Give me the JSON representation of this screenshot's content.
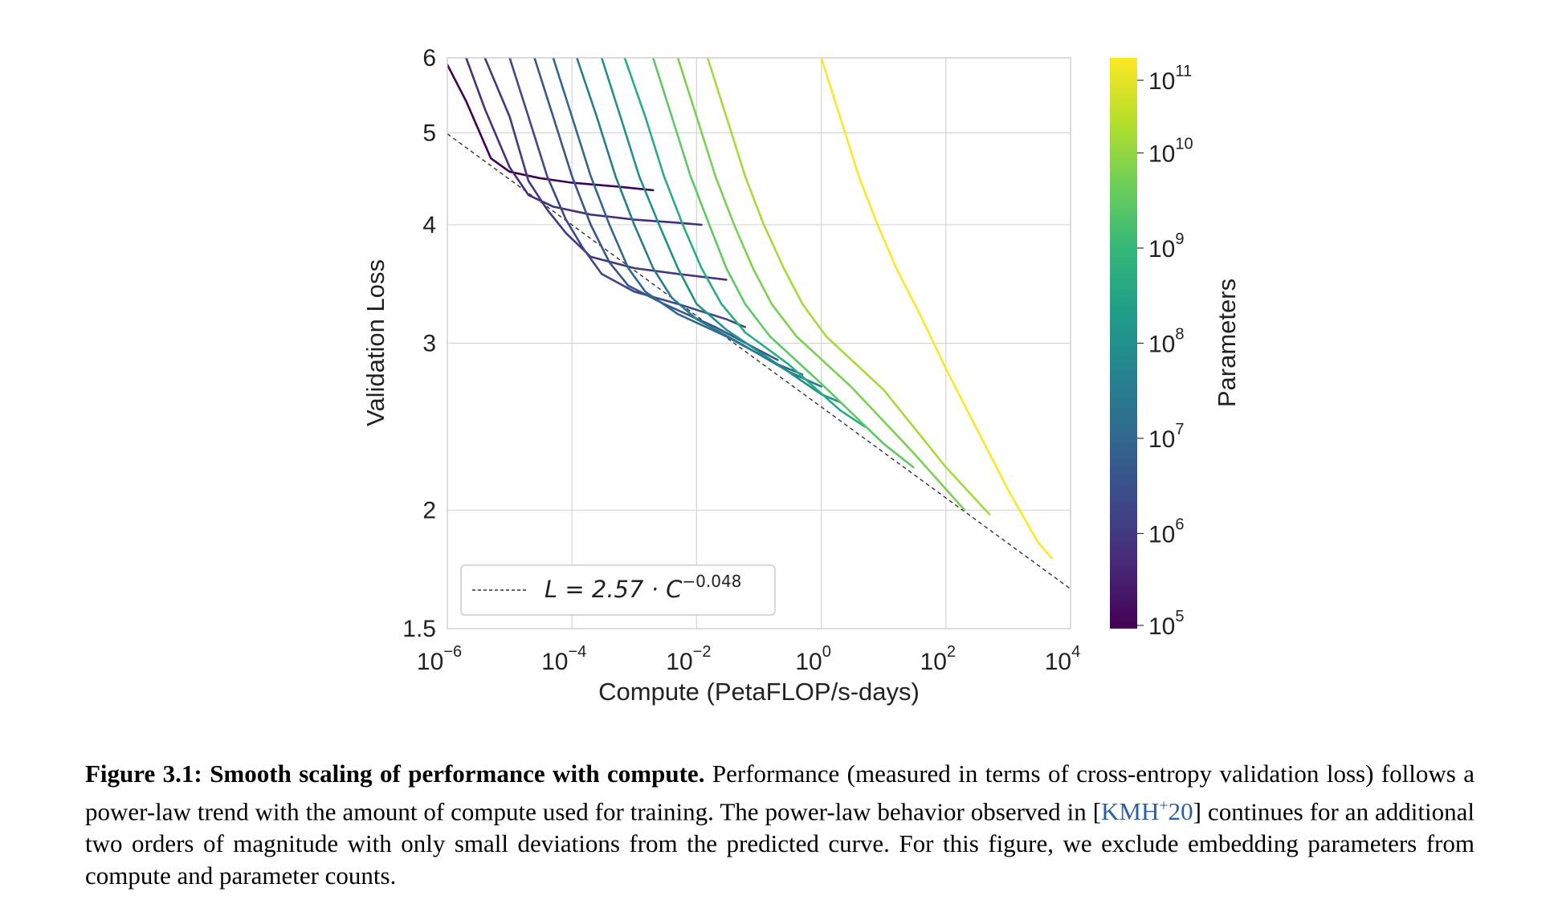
{
  "chart_data": {
    "type": "line",
    "xlabel": "Compute (PetaFLOP/s-days)",
    "ylabel": "Validation Loss",
    "x_scale": "log",
    "y_scale": "log",
    "xlim": [
      1e-06,
      10000.0
    ],
    "ylim": [
      1.5,
      6
    ],
    "x_ticks": [
      {
        "base": "10",
        "exp": "−6",
        "value": 1e-06
      },
      {
        "base": "10",
        "exp": "−4",
        "value": 0.0001
      },
      {
        "base": "10",
        "exp": "−2",
        "value": 0.01
      },
      {
        "base": "10",
        "exp": "0",
        "value": 1
      },
      {
        "base": "10",
        "exp": "2",
        "value": 100
      },
      {
        "base": "10",
        "exp": "4",
        "value": 10000
      }
    ],
    "y_ticks": [
      {
        "label": "1.5",
        "value": 1.5
      },
      {
        "label": "2",
        "value": 2
      },
      {
        "label": "3",
        "value": 3
      },
      {
        "label": "4",
        "value": 4
      },
      {
        "label": "5",
        "value": 5
      },
      {
        "label": "6",
        "value": 6
      }
    ],
    "grid": true,
    "legend": {
      "placement": "lower-left",
      "lhs": "L = 2.57 · C",
      "exponent": "−0.048"
    },
    "trend": {
      "a": 2.57,
      "b": -0.048,
      "style": "dashed",
      "color": "#333333"
    },
    "colorbar": {
      "label": "Parameters",
      "scale": "log",
      "range": [
        100000.0,
        100000000000.0
      ],
      "ticks": [
        {
          "base": "10",
          "exp": "5",
          "value": 100000.0
        },
        {
          "base": "10",
          "exp": "6",
          "value": 1000000.0
        },
        {
          "base": "10",
          "exp": "7",
          "value": 10000000.0
        },
        {
          "base": "10",
          "exp": "8",
          "value": 100000000.0
        },
        {
          "base": "10",
          "exp": "9",
          "value": 1000000000.0
        },
        {
          "base": "10",
          "exp": "10",
          "value": 10000000000.0
        },
        {
          "base": "10",
          "exp": "11",
          "value": 100000000000.0
        }
      ],
      "colormap": "viridis"
    },
    "series": [
      {
        "params": 100000.0,
        "color": "#440154",
        "points": [
          [
            1e-06,
            5.9
          ],
          [
            2e-06,
            5.4
          ],
          [
            5e-06,
            4.7
          ],
          [
            1e-05,
            4.55
          ],
          [
            3e-05,
            4.48
          ],
          [
            0.0001,
            4.43
          ],
          [
            0.0005,
            4.39
          ],
          [
            0.002,
            4.35
          ]
        ]
      },
      {
        "params": 300000.0,
        "color": "#46307e",
        "points": [
          [
            2e-06,
            6.0
          ],
          [
            4e-06,
            5.3
          ],
          [
            1e-05,
            4.6
          ],
          [
            2e-05,
            4.3
          ],
          [
            5e-05,
            4.18
          ],
          [
            0.0002,
            4.1
          ],
          [
            0.001,
            4.05
          ],
          [
            0.005,
            4.02
          ],
          [
            0.012,
            4.0
          ]
        ]
      },
      {
        "params": 1000000.0,
        "color": "#453781",
        "points": [
          [
            4e-06,
            6.0
          ],
          [
            1e-05,
            5.2
          ],
          [
            2e-05,
            4.45
          ],
          [
            4e-05,
            4.15
          ],
          [
            8e-05,
            3.92
          ],
          [
            0.0002,
            3.7
          ],
          [
            0.001,
            3.6
          ],
          [
            0.005,
            3.55
          ],
          [
            0.03,
            3.5
          ]
        ]
      },
      {
        "params": 2000000.0,
        "color": "#3f4889",
        "points": [
          [
            1e-05,
            6.0
          ],
          [
            2e-05,
            5.2
          ],
          [
            4e-05,
            4.5
          ],
          [
            8e-05,
            4.05
          ],
          [
            0.00015,
            3.78
          ],
          [
            0.0003,
            3.55
          ],
          [
            0.001,
            3.4
          ],
          [
            0.005,
            3.3
          ],
          [
            0.03,
            3.18
          ],
          [
            0.06,
            3.12
          ]
        ]
      },
      {
        "params": 5000000.0,
        "color": "#39568c",
        "points": [
          [
            2.5e-05,
            6.0
          ],
          [
            5e-05,
            5.2
          ],
          [
            0.0001,
            4.5
          ],
          [
            0.0002,
            4.0
          ],
          [
            0.0004,
            3.65
          ],
          [
            0.0008,
            3.45
          ],
          [
            0.003,
            3.3
          ],
          [
            0.02,
            3.12
          ],
          [
            0.1,
            2.95
          ],
          [
            0.2,
            2.88
          ]
        ]
      },
      {
        "params": 10000000.0,
        "color": "#31688e",
        "points": [
          [
            5e-05,
            6.0
          ],
          [
            0.0001,
            5.2
          ],
          [
            0.0002,
            4.5
          ],
          [
            0.0004,
            4.0
          ],
          [
            0.0008,
            3.6
          ],
          [
            0.0015,
            3.4
          ],
          [
            0.005,
            3.22
          ],
          [
            0.03,
            3.05
          ],
          [
            0.2,
            2.85
          ],
          [
            0.5,
            2.78
          ]
        ]
      },
      {
        "params": 30000000.0,
        "color": "#287c8e",
        "points": [
          [
            0.00012,
            6.0
          ],
          [
            0.00025,
            5.2
          ],
          [
            0.0005,
            4.5
          ],
          [
            0.001,
            4.0
          ],
          [
            0.002,
            3.6
          ],
          [
            0.004,
            3.35
          ],
          [
            0.01,
            3.18
          ],
          [
            0.05,
            3.0
          ],
          [
            0.3,
            2.8
          ],
          [
            1,
            2.7
          ]
        ]
      },
      {
        "params": 100000000.0,
        "color": "#21918c",
        "points": [
          [
            0.0003,
            6.0
          ],
          [
            0.0006,
            5.2
          ],
          [
            0.0012,
            4.5
          ],
          [
            0.0025,
            4.0
          ],
          [
            0.005,
            3.6
          ],
          [
            0.01,
            3.3
          ],
          [
            0.03,
            3.1
          ],
          [
            0.2,
            2.85
          ],
          [
            1,
            2.65
          ],
          [
            2,
            2.6
          ]
        ]
      },
      {
        "params": 300000000.0,
        "color": "#27ad81",
        "points": [
          [
            0.0007,
            6.0
          ],
          [
            0.0015,
            5.2
          ],
          [
            0.003,
            4.5
          ],
          [
            0.006,
            4.0
          ],
          [
            0.012,
            3.6
          ],
          [
            0.025,
            3.3
          ],
          [
            0.06,
            3.08
          ],
          [
            0.3,
            2.85
          ],
          [
            2,
            2.55
          ],
          [
            5,
            2.45
          ]
        ]
      },
      {
        "params": 800000000.0,
        "color": "#5ec962",
        "points": [
          [
            0.002,
            6.0
          ],
          [
            0.004,
            5.2
          ],
          [
            0.008,
            4.5
          ],
          [
            0.016,
            4.0
          ],
          [
            0.03,
            3.6
          ],
          [
            0.06,
            3.3
          ],
          [
            0.15,
            3.05
          ],
          [
            1,
            2.72
          ],
          [
            10.0,
            2.35
          ],
          [
            30.0,
            2.22
          ]
        ]
      },
      {
        "params": 2000000000.0,
        "color": "#7ad151",
        "points": [
          [
            0.005,
            6.0
          ],
          [
            0.01,
            5.2
          ],
          [
            0.02,
            4.5
          ],
          [
            0.04,
            4.0
          ],
          [
            0.08,
            3.6
          ],
          [
            0.16,
            3.3
          ],
          [
            0.4,
            3.05
          ],
          [
            3,
            2.7
          ],
          [
            30.0,
            2.3
          ],
          [
            200.0,
            2.0
          ]
        ]
      },
      {
        "params": 10000000000.0,
        "color": "#a5db36",
        "points": [
          [
            0.015,
            6.0
          ],
          [
            0.03,
            5.2
          ],
          [
            0.06,
            4.5
          ],
          [
            0.12,
            4.0
          ],
          [
            0.25,
            3.6
          ],
          [
            0.5,
            3.3
          ],
          [
            1.2,
            3.05
          ],
          [
            10.0,
            2.68
          ],
          [
            100.0,
            2.22
          ],
          [
            500.0,
            1.98
          ]
        ]
      },
      {
        "params": 175000000000.0,
        "color": "#fde725",
        "points": [
          [
            1,
            6.0
          ],
          [
            2,
            5.2
          ],
          [
            4,
            4.5
          ],
          [
            8,
            4.0
          ],
          [
            16.0,
            3.6
          ],
          [
            40.0,
            3.2
          ],
          [
            100.0,
            2.82
          ],
          [
            300.0,
            2.45
          ],
          [
            1000.0,
            2.1
          ],
          [
            3000.0,
            1.85
          ],
          [
            5000.0,
            1.78
          ]
        ]
      }
    ]
  },
  "caption": {
    "label": "Figure 3.1:",
    "title": "Smooth scaling of performance with compute.",
    "text_before_cite": "Performance (measured in terms of cross-entropy validation loss) follows a power-law trend with the amount of compute used for training. The power-law behavior observed in [",
    "cite_main": "KMH",
    "cite_sup": "+",
    "cite_year": "20",
    "text_after_cite": "] continues for an additional two orders of magnitude with only small deviations from the predicted curve. For this figure, we exclude embedding parameters from compute and parameter counts."
  }
}
